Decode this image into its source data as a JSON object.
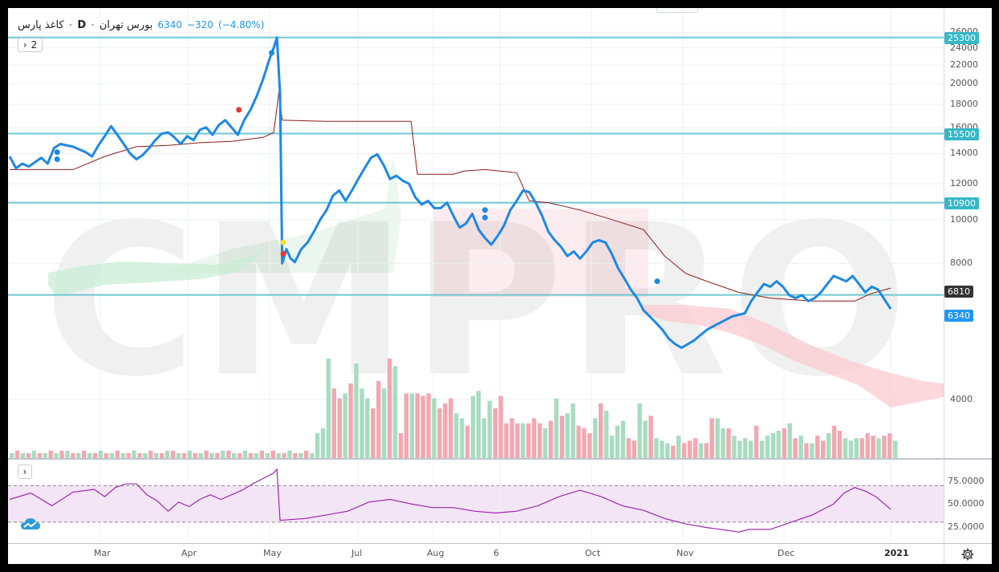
{
  "header": {
    "symbol": "کاغذ پارس",
    "timeframe": "D",
    "exchange": "بورس تهران",
    "last": "6340",
    "change": "−320",
    "change_pct": "(−4.80%)",
    "indicator_count": "2",
    "rsi_toggle": "›"
  },
  "watermark": {
    "text": "CMPRO"
  },
  "price_axis": {
    "ticks": [
      "26000",
      "24000",
      "22000",
      "20000",
      "18000",
      "16000",
      "14000",
      "12000",
      "10000",
      "8000",
      "4000"
    ],
    "tick_values": [
      26000,
      24000,
      22000,
      20000,
      18000,
      16000,
      14000,
      12000,
      10000,
      8000,
      4000
    ],
    "level_tags": [
      {
        "label": "25300",
        "value": 25300
      },
      {
        "label": "15500",
        "value": 15500
      },
      {
        "label": "10900",
        "value": 10900
      },
      {
        "label": "6810",
        "value": 6810
      },
      {
        "label": "6340",
        "value": 6340
      }
    ],
    "tag_colors": {
      "level": "#35b8c6",
      "last": "#2196f3",
      "ma": "#333333"
    }
  },
  "rsi_axis": {
    "ticks": [
      "75.0000",
      "50.0000",
      "25.0000"
    ],
    "tick_values": [
      75,
      50,
      25
    ]
  },
  "time_axis": {
    "labels": [
      "Mar",
      "Apr",
      "May",
      "Jul",
      "Aug",
      "6",
      "Oct",
      "Nov",
      "Dec",
      "2021"
    ],
    "bold": [
      "2021"
    ]
  },
  "icons": {
    "settings": "gear-icon",
    "logo": "cloud-logo-icon"
  },
  "colors": {
    "price_line": "#1e88e5",
    "ma_line": "#8b1a1a",
    "level_line": "#6fc8d1",
    "vol_up": "#a8dcc0",
    "vol_down": "#f3a7b0",
    "cloud_green": "#c8ecd4",
    "cloud_red": "#fbcdd3",
    "rsi_line": "#9c27b0",
    "rsi_band": "#f3e5f5"
  },
  "chart_data": {
    "type": "line",
    "scale": "log",
    "ylim": [
      3000,
      28000
    ],
    "price_line": [
      [
        0,
        13800
      ],
      [
        6,
        13000
      ],
      [
        12,
        13300
      ],
      [
        18,
        13100
      ],
      [
        24,
        13400
      ],
      [
        30,
        13700
      ],
      [
        36,
        13300
      ],
      [
        42,
        14400
      ],
      [
        48,
        14700
      ],
      [
        54,
        14600
      ],
      [
        60,
        14500
      ],
      [
        66,
        14300
      ],
      [
        72,
        14100
      ],
      [
        78,
        13800
      ],
      [
        84,
        14600
      ],
      [
        90,
        15300
      ],
      [
        96,
        16100
      ],
      [
        102,
        15400
      ],
      [
        108,
        14700
      ],
      [
        114,
        14000
      ],
      [
        120,
        13600
      ],
      [
        126,
        13900
      ],
      [
        132,
        14400
      ],
      [
        138,
        15000
      ],
      [
        144,
        15500
      ],
      [
        150,
        15600
      ],
      [
        156,
        15200
      ],
      [
        162,
        14700
      ],
      [
        168,
        15300
      ],
      [
        174,
        15000
      ],
      [
        180,
        15800
      ],
      [
        186,
        16000
      ],
      [
        192,
        15400
      ],
      [
        198,
        16200
      ],
      [
        204,
        16600
      ],
      [
        210,
        16000
      ],
      [
        216,
        15400
      ],
      [
        222,
        16600
      ],
      [
        228,
        17500
      ],
      [
        234,
        18800
      ],
      [
        240,
        20500
      ],
      [
        246,
        22700
      ],
      [
        250,
        24000
      ],
      [
        253,
        25300
      ],
      [
        256,
        19000
      ],
      [
        258,
        8000
      ],
      [
        262,
        8600
      ],
      [
        266,
        8200
      ],
      [
        270,
        8050
      ],
      [
        276,
        8600
      ],
      [
        282,
        8900
      ],
      [
        288,
        9400
      ],
      [
        294,
        10000
      ],
      [
        300,
        10500
      ],
      [
        306,
        11300
      ],
      [
        312,
        11600
      ],
      [
        318,
        11000
      ],
      [
        324,
        11600
      ],
      [
        330,
        12300
      ],
      [
        336,
        13000
      ],
      [
        342,
        13700
      ],
      [
        348,
        13950
      ],
      [
        354,
        13200
      ],
      [
        360,
        12300
      ],
      [
        366,
        12500
      ],
      [
        372,
        12200
      ],
      [
        378,
        12000
      ],
      [
        384,
        11200
      ],
      [
        390,
        10800
      ],
      [
        396,
        11000
      ],
      [
        402,
        10600
      ],
      [
        408,
        10600
      ],
      [
        414,
        10900
      ],
      [
        420,
        10200
      ],
      [
        426,
        9600
      ],
      [
        432,
        9800
      ],
      [
        438,
        10300
      ],
      [
        444,
        9500
      ],
      [
        450,
        9100
      ],
      [
        456,
        8800
      ],
      [
        462,
        9200
      ],
      [
        468,
        9700
      ],
      [
        474,
        10500
      ],
      [
        480,
        11000
      ],
      [
        486,
        11600
      ],
      [
        492,
        11500
      ],
      [
        498,
        10900
      ],
      [
        504,
        10200
      ],
      [
        510,
        9400
      ],
      [
        516,
        9000
      ],
      [
        522,
        8700
      ],
      [
        528,
        8300
      ],
      [
        534,
        8500
      ],
      [
        540,
        8200
      ],
      [
        546,
        8500
      ],
      [
        552,
        8900
      ],
      [
        558,
        9000
      ],
      [
        564,
        8900
      ],
      [
        570,
        8400
      ],
      [
        576,
        7800
      ],
      [
        582,
        7400
      ],
      [
        588,
        7000
      ],
      [
        594,
        6700
      ],
      [
        600,
        6300
      ],
      [
        606,
        6100
      ],
      [
        612,
        5900
      ],
      [
        618,
        5700
      ],
      [
        624,
        5450
      ],
      [
        630,
        5300
      ],
      [
        636,
        5200
      ],
      [
        642,
        5300
      ],
      [
        648,
        5400
      ],
      [
        654,
        5550
      ],
      [
        660,
        5700
      ],
      [
        666,
        5800
      ],
      [
        672,
        5900
      ],
      [
        678,
        6000
      ],
      [
        684,
        6100
      ],
      [
        690,
        6150
      ],
      [
        696,
        6200
      ],
      [
        702,
        6600
      ],
      [
        708,
        6900
      ],
      [
        714,
        7200
      ],
      [
        720,
        7100
      ],
      [
        726,
        7300
      ],
      [
        732,
        7100
      ],
      [
        738,
        6800
      ],
      [
        744,
        6700
      ],
      [
        750,
        6800
      ],
      [
        756,
        6600
      ],
      [
        762,
        6700
      ],
      [
        768,
        6900
      ],
      [
        774,
        7200
      ],
      [
        780,
        7500
      ],
      [
        786,
        7400
      ],
      [
        792,
        7300
      ],
      [
        798,
        7500
      ],
      [
        804,
        7200
      ],
      [
        810,
        6900
      ],
      [
        816,
        7100
      ],
      [
        822,
        7000
      ],
      [
        828,
        6660
      ],
      [
        834,
        6340
      ]
    ],
    "ma_line": [
      [
        0,
        12900
      ],
      [
        60,
        12900
      ],
      [
        90,
        13800
      ],
      [
        120,
        14500
      ],
      [
        150,
        14600
      ],
      [
        180,
        14800
      ],
      [
        210,
        14900
      ],
      [
        240,
        15200
      ],
      [
        250,
        15600
      ],
      [
        255,
        19200
      ],
      [
        258,
        16600
      ],
      [
        300,
        16500
      ],
      [
        340,
        16500
      ],
      [
        380,
        16500
      ],
      [
        386,
        12600
      ],
      [
        420,
        12600
      ],
      [
        430,
        12800
      ],
      [
        450,
        12900
      ],
      [
        480,
        12700
      ],
      [
        492,
        11000
      ],
      [
        510,
        10900
      ],
      [
        540,
        10500
      ],
      [
        570,
        10000
      ],
      [
        600,
        9500
      ],
      [
        620,
        8300
      ],
      [
        640,
        7600
      ],
      [
        660,
        7300
      ],
      [
        690,
        6900
      ],
      [
        720,
        6700
      ],
      [
        760,
        6600
      ],
      [
        800,
        6600
      ],
      [
        815,
        6850
      ],
      [
        834,
        7050
      ]
    ],
    "horizontal_levels": [
      25300,
      15500,
      10900,
      6810
    ],
    "markers": [
      {
        "x": 45,
        "y": 14100,
        "color": "#1e88e5"
      },
      {
        "x": 45,
        "y": 13600,
        "color": "#1e88e5"
      },
      {
        "x": 248,
        "y": 23400,
        "color": "#1e88e5"
      },
      {
        "x": 217,
        "y": 17500,
        "color": "#e53935"
      },
      {
        "x": 259,
        "y": 8900,
        "color": "#fdd835"
      },
      {
        "x": 259,
        "y": 8400,
        "color": "#e53935"
      },
      {
        "x": 450,
        "y": 10500,
        "color": "#1e88e5"
      },
      {
        "x": 450,
        "y": 10100,
        "color": "#1e88e5"
      },
      {
        "x": 613,
        "y": 7300,
        "color": "#1e88e5"
      }
    ],
    "volume": [
      2,
      3,
      2,
      2,
      3,
      2,
      2,
      3,
      2,
      3,
      3,
      2,
      2,
      3,
      2,
      2,
      3,
      2,
      2,
      3,
      2,
      2,
      3,
      2,
      2,
      3,
      2,
      2,
      3,
      3,
      2,
      2,
      3,
      2,
      2,
      3,
      2,
      2,
      3,
      3,
      2,
      2,
      3,
      2,
      2,
      3,
      2,
      3,
      2,
      2,
      3,
      2,
      2,
      3,
      2,
      10,
      12,
      40,
      28,
      24,
      26,
      30,
      38,
      28,
      24,
      20,
      31,
      28,
      40,
      37,
      10,
      26,
      26,
      26,
      25,
      26,
      24,
      20,
      22,
      24,
      18,
      16,
      13,
      25,
      27,
      16,
      23,
      20,
      25,
      14,
      16,
      14,
      14,
      14,
      16,
      14,
      12,
      15,
      24,
      17,
      18,
      22,
      13,
      12,
      10,
      16,
      22,
      19,
      9,
      13,
      15,
      8,
      7,
      22,
      15,
      17,
      8,
      7,
      6,
      5,
      9,
      6,
      7,
      8,
      6,
      6,
      16,
      16,
      12,
      12,
      9,
      7,
      8,
      7,
      13,
      7,
      9,
      10,
      11,
      12,
      14,
      8,
      9,
      6,
      6,
      9,
      7,
      10,
      13,
      11,
      8,
      7,
      8,
      8,
      10,
      9,
      8,
      9,
      10,
      7
    ],
    "rsi": [
      [
        0,
        55
      ],
      [
        20,
        62
      ],
      [
        40,
        48
      ],
      [
        60,
        63
      ],
      [
        80,
        66
      ],
      [
        90,
        58
      ],
      [
        100,
        68
      ],
      [
        110,
        72
      ],
      [
        120,
        72
      ],
      [
        130,
        60
      ],
      [
        140,
        53
      ],
      [
        150,
        42
      ],
      [
        160,
        52
      ],
      [
        170,
        47
      ],
      [
        180,
        55
      ],
      [
        190,
        60
      ],
      [
        200,
        55
      ],
      [
        210,
        60
      ],
      [
        220,
        65
      ],
      [
        230,
        72
      ],
      [
        240,
        78
      ],
      [
        250,
        84
      ],
      [
        253,
        88
      ],
      [
        256,
        32
      ],
      [
        280,
        34
      ],
      [
        300,
        38
      ],
      [
        320,
        42
      ],
      [
        340,
        52
      ],
      [
        360,
        55
      ],
      [
        380,
        50
      ],
      [
        400,
        46
      ],
      [
        420,
        46
      ],
      [
        440,
        42
      ],
      [
        460,
        40
      ],
      [
        480,
        42
      ],
      [
        500,
        48
      ],
      [
        520,
        58
      ],
      [
        540,
        65
      ],
      [
        560,
        58
      ],
      [
        580,
        48
      ],
      [
        600,
        43
      ],
      [
        620,
        34
      ],
      [
        640,
        28
      ],
      [
        660,
        24
      ],
      [
        680,
        21
      ],
      [
        690,
        19
      ],
      [
        700,
        22
      ],
      [
        720,
        22
      ],
      [
        740,
        30
      ],
      [
        760,
        38
      ],
      [
        780,
        50
      ],
      [
        790,
        62
      ],
      [
        800,
        68
      ],
      [
        810,
        64
      ],
      [
        820,
        58
      ],
      [
        834,
        44
      ]
    ]
  }
}
